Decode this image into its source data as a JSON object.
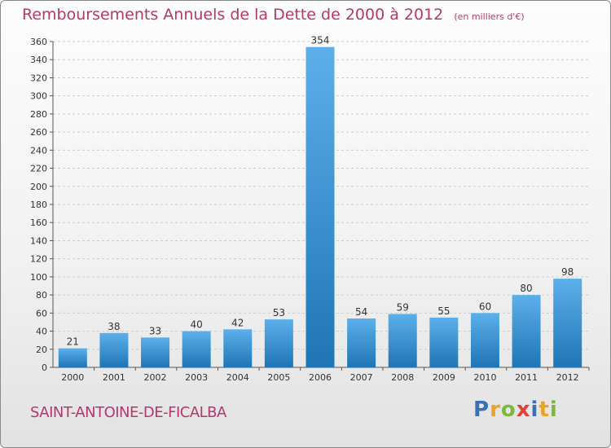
{
  "title": "Remboursements Annuels de la Dette de 2000 à 2012",
  "unit": "(en milliers d'€)",
  "commune": "SAINT-ANTOINE-DE-FICALBA",
  "logo": {
    "text": "Proxiti",
    "letters": [
      {
        "ch": "P",
        "color": "#3b6fb6"
      },
      {
        "ch": "r",
        "color": "#e8a32a"
      },
      {
        "ch": "o",
        "color": "#7db83a"
      },
      {
        "ch": "x",
        "color": "#e0403a"
      },
      {
        "ch": "i",
        "color": "#3b6fb6"
      },
      {
        "ch": "t",
        "color": "#e8a32a"
      },
      {
        "ch": "i",
        "color": "#7db83a"
      }
    ]
  },
  "colors": {
    "title": "#b5386a",
    "bar_top": "#5cb0ea",
    "bar_bottom": "#1f75b5",
    "grid": "#cccccc",
    "axis": "#555555"
  },
  "chart_data": {
    "type": "bar",
    "title": "Remboursements Annuels de la Dette de 2000 à 2012",
    "ylabel": "",
    "xlabel": "",
    "categories": [
      "2000",
      "2001",
      "2002",
      "2003",
      "2004",
      "2005",
      "2006",
      "2007",
      "2008",
      "2009",
      "2010",
      "2011",
      "2012"
    ],
    "values": [
      21,
      38,
      33,
      40,
      42,
      53,
      354,
      54,
      59,
      55,
      60,
      80,
      98
    ],
    "ylim": [
      0,
      360
    ],
    "yticks": [
      0,
      20,
      40,
      60,
      80,
      100,
      120,
      140,
      160,
      180,
      200,
      220,
      240,
      260,
      280,
      300,
      320,
      340,
      360
    ],
    "grid": true,
    "data_labels": true
  }
}
